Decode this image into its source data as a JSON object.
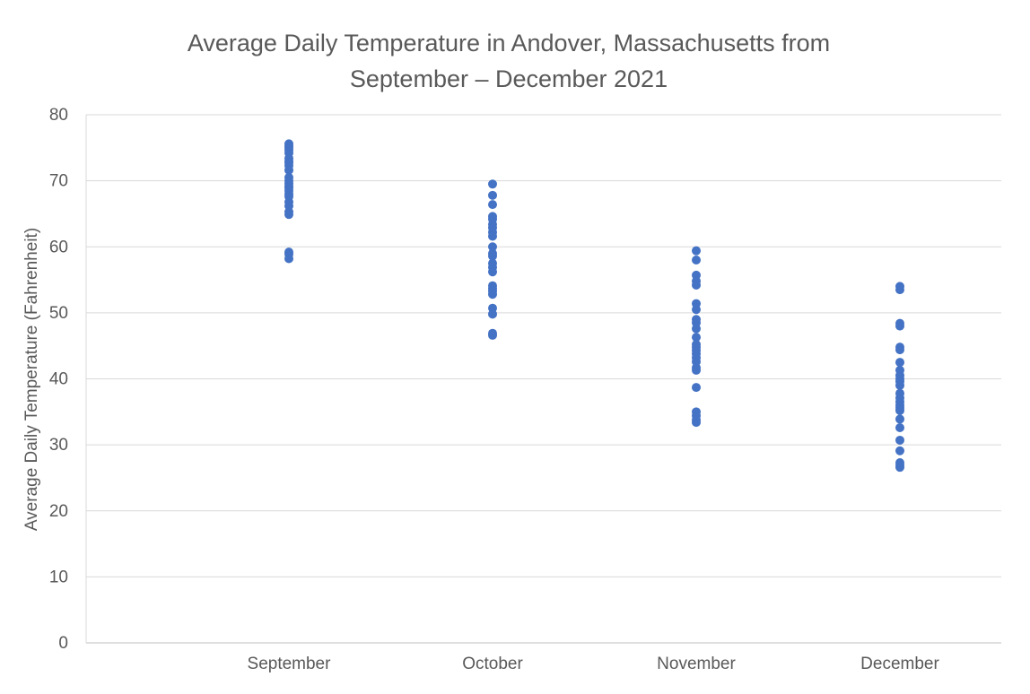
{
  "chart_data": {
    "type": "scatter",
    "title": [
      "Average Daily Temperature in Andover, Massachusetts from",
      "September – December 2021"
    ],
    "xlabel": "",
    "ylabel": "Average Daily Temperature (Fahrenheit)",
    "categories": [
      "September",
      "October",
      "November",
      "December"
    ],
    "ylim": [
      0,
      80
    ],
    "yticks": [
      "0",
      "10",
      "20",
      "30",
      "40",
      "50",
      "60",
      "70",
      "80"
    ],
    "grid": true,
    "legend": "none",
    "marker_color": "#4472C4",
    "series": [
      {
        "values": [
          75.6,
          75.3,
          75.0,
          74.6,
          74.2,
          73.4,
          73.0,
          72.7,
          72.3,
          71.6,
          70.5,
          70.0,
          69.6,
          69.2,
          68.9,
          68.5,
          68.0,
          67.6,
          66.8,
          66.2,
          65.3,
          64.9,
          59.2,
          58.9,
          58.2
        ]
      },
      {
        "values": [
          69.5,
          67.8,
          66.4,
          64.6,
          64.2,
          63.4,
          62.9,
          62.2,
          61.6,
          60.0,
          59.0,
          58.6,
          57.5,
          56.9,
          56.2,
          54.1,
          53.7,
          53.3,
          52.8,
          50.7,
          49.8,
          46.9,
          46.6
        ]
      },
      {
        "values": [
          59.4,
          58.0,
          55.7,
          54.8,
          54.2,
          51.4,
          50.5,
          49.0,
          48.5,
          47.6,
          46.3,
          45.2,
          44.8,
          44.3,
          43.8,
          43.2,
          42.6,
          41.7,
          41.3,
          38.7,
          35.0,
          34.4,
          33.8,
          33.4
        ]
      },
      {
        "values": [
          54.0,
          53.5,
          48.4,
          48.0,
          44.8,
          44.4,
          42.5,
          41.3,
          40.5,
          40.0,
          39.6,
          39.0,
          37.8,
          37.1,
          36.5,
          36.0,
          35.6,
          35.2,
          33.9,
          32.6,
          30.7,
          29.1,
          27.3,
          26.9,
          26.6
        ]
      }
    ]
  }
}
